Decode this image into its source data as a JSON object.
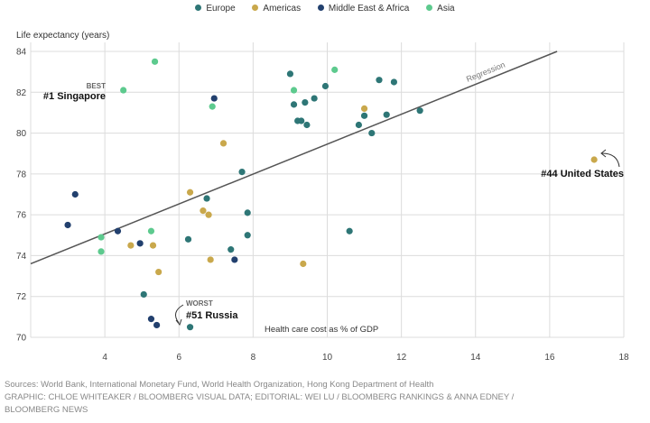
{
  "legend": [
    {
      "name": "Europe",
      "color": "#2e7676"
    },
    {
      "name": "Americas",
      "color": "#c9a84c"
    },
    {
      "name": "Middle East & Africa",
      "color": "#22406e"
    },
    {
      "name": "Asia",
      "color": "#5dca8e"
    }
  ],
  "footer": {
    "line1": "Sources: World Bank, International Monetary Fund, World Health Organization, Hong Kong Department of Health",
    "line2": "GRAPHIC: CHLOE WHITEAKER / BLOOMBERG VISUAL DATA; EDITORIAL: WEI LU / BLOOMBERG RANKINGS & ANNA EDNEY /",
    "line3": "BLOOMBERG NEWS"
  },
  "chart_data": {
    "type": "scatter",
    "title": "",
    "ylabel": "Life expectancy (years)",
    "xlabel": "Health care cost as % of GDP",
    "xlim": [
      2,
      18
    ],
    "ylim": [
      70,
      84
    ],
    "xticks": [
      4,
      6,
      8,
      10,
      12,
      14,
      16,
      18
    ],
    "yticks": [
      70,
      72,
      74,
      76,
      78,
      80,
      82,
      84
    ],
    "grid": true,
    "legend_position": "top",
    "regression": {
      "label": "Regression",
      "x1": 2,
      "y1": 73.6,
      "x2": 16.2,
      "y2": 84.0
    },
    "annotations": [
      {
        "small": "BEST",
        "text": "#1 Singapore",
        "x": 4.5,
        "y": 82.1
      },
      {
        "small": "WORST",
        "text": "#51 Russia",
        "x": 6.3,
        "y": 70.5
      },
      {
        "small": "",
        "text": "#44 United States",
        "x": 17.2,
        "y": 78.7
      }
    ],
    "series": [
      {
        "name": "Europe",
        "color": "#2e7676",
        "points": [
          [
            9.0,
            82.9
          ],
          [
            9.1,
            81.4
          ],
          [
            9.2,
            80.6
          ],
          [
            9.3,
            80.6
          ],
          [
            9.4,
            81.5
          ],
          [
            9.45,
            80.4
          ],
          [
            9.65,
            81.7
          ],
          [
            9.95,
            82.3
          ],
          [
            10.85,
            80.4
          ],
          [
            11.0,
            80.85
          ],
          [
            11.2,
            80.0
          ],
          [
            11.4,
            82.6
          ],
          [
            11.6,
            80.9
          ],
          [
            11.8,
            82.5
          ],
          [
            12.5,
            81.1
          ],
          [
            7.7,
            78.1
          ],
          [
            6.75,
            76.8
          ],
          [
            7.85,
            76.1
          ],
          [
            7.85,
            75.0
          ],
          [
            7.4,
            74.3
          ],
          [
            6.25,
            74.8
          ],
          [
            5.05,
            72.1
          ],
          [
            10.6,
            75.2
          ],
          [
            6.3,
            70.5
          ]
        ]
      },
      {
        "name": "Americas",
        "color": "#c9a84c",
        "points": [
          [
            11.0,
            81.2
          ],
          [
            7.2,
            79.5
          ],
          [
            6.3,
            77.1
          ],
          [
            6.65,
            76.2
          ],
          [
            6.8,
            76.0
          ],
          [
            4.7,
            74.5
          ],
          [
            5.3,
            74.5
          ],
          [
            5.45,
            73.2
          ],
          [
            6.85,
            73.8
          ],
          [
            9.35,
            73.6
          ],
          [
            17.2,
            78.7
          ]
        ]
      },
      {
        "name": "Middle East & Africa",
        "color": "#22406e",
        "points": [
          [
            3.2,
            77.0
          ],
          [
            3.0,
            75.5
          ],
          [
            4.35,
            75.2
          ],
          [
            4.95,
            74.6
          ],
          [
            6.95,
            81.7
          ],
          [
            7.5,
            73.8
          ],
          [
            5.25,
            70.9
          ],
          [
            5.4,
            70.6
          ]
        ]
      },
      {
        "name": "Asia",
        "color": "#5dca8e",
        "points": [
          [
            5.35,
            83.5
          ],
          [
            4.5,
            82.1
          ],
          [
            10.2,
            83.1
          ],
          [
            9.1,
            82.1
          ],
          [
            6.9,
            81.3
          ],
          [
            3.9,
            74.9
          ],
          [
            3.9,
            74.2
          ],
          [
            5.25,
            75.2
          ]
        ]
      }
    ]
  }
}
